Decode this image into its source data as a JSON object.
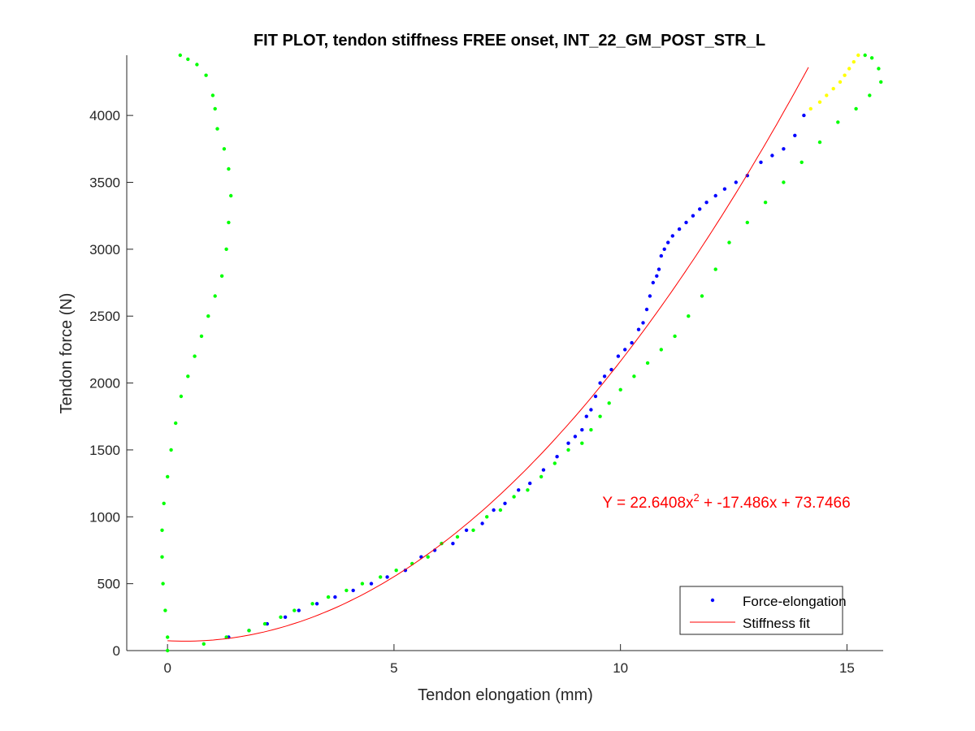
{
  "chart_data": {
    "type": "scatter",
    "title": "FIT PLOT, tendon stiffness FREE onset, INT_22_GM_POST_STR_L",
    "xlabel": "Tendon elongation (mm)",
    "ylabel": "Tendon force (N)",
    "xlim": [
      -0.9,
      15.8
    ],
    "ylim": [
      0,
      4450
    ],
    "xticks": [
      0,
      5,
      10,
      15
    ],
    "yticks": [
      0,
      500,
      1000,
      1500,
      2000,
      2500,
      3000,
      3500,
      4000
    ],
    "grid": false,
    "legend_position": "bottom-right",
    "legend": [
      {
        "label": "Force-elongation",
        "marker": "dot",
        "color": "#0000ff"
      },
      {
        "label": "Stiffness fit",
        "marker": "line",
        "color": "#ff0000"
      }
    ],
    "annotation": {
      "prefix": "Y = 22.6408x",
      "superscript": "2",
      "suffix": " + -17.486x + 73.7466",
      "color": "#ff0000",
      "x": 9.6,
      "y": 1070
    },
    "fit": {
      "name": "Stiffness fit",
      "color": "#ff0000",
      "coefficients": [
        22.6408,
        -17.486,
        73.7466
      ],
      "x_range": [
        0.0,
        14.15
      ]
    },
    "series": [
      {
        "name": "Force-elongation",
        "color": "#0000ff",
        "x": [
          1.35,
          1.8,
          2.2,
          2.6,
          2.9,
          3.3,
          3.7,
          4.1,
          4.5,
          4.85,
          5.25,
          5.6,
          5.9,
          6.3,
          6.6,
          6.95,
          7.2,
          7.45,
          7.75,
          8.0,
          8.3,
          8.6,
          8.85,
          9.0,
          9.15,
          9.25,
          9.35,
          9.45,
          9.55,
          9.65,
          9.8,
          9.95,
          10.1,
          10.25,
          10.4,
          10.5,
          10.58,
          10.65,
          10.72,
          10.8,
          10.85,
          10.9,
          10.97,
          11.05,
          11.15,
          11.3,
          11.45,
          11.6,
          11.75,
          11.9,
          12.1,
          12.3,
          12.55,
          12.8,
          13.1,
          13.35,
          13.6,
          13.85,
          14.05
        ],
        "y": [
          100,
          150,
          200,
          250,
          300,
          350,
          400,
          450,
          500,
          550,
          600,
          700,
          750,
          800,
          900,
          950,
          1050,
          1100,
          1200,
          1250,
          1350,
          1450,
          1550,
          1600,
          1650,
          1750,
          1800,
          1900,
          2000,
          2050,
          2100,
          2200,
          2250,
          2300,
          2400,
          2450,
          2550,
          2650,
          2750,
          2800,
          2850,
          2950,
          3000,
          3050,
          3100,
          3150,
          3200,
          3250,
          3300,
          3350,
          3400,
          3450,
          3500,
          3550,
          3650,
          3700,
          3750,
          3850,
          4000
        ]
      },
      {
        "name": "",
        "color": "#00ff00",
        "x": [
          1.3,
          1.8,
          2.15,
          2.5,
          2.8,
          3.2,
          3.55,
          3.95,
          4.3,
          4.7,
          5.05,
          5.4,
          5.75,
          6.05,
          6.4,
          6.75,
          7.05,
          7.35,
          7.65,
          7.95,
          8.25,
          8.55,
          8.85,
          9.15,
          9.35,
          9.55,
          9.75,
          10.0,
          10.3,
          10.6,
          10.9,
          11.2,
          11.5,
          11.8,
          12.1,
          12.4,
          12.8,
          13.2,
          13.6,
          14.0,
          14.4,
          14.8,
          15.2,
          15.5,
          15.75,
          15.7,
          15.55,
          15.4
        ],
        "y": [
          100,
          150,
          200,
          250,
          300,
          350,
          400,
          450,
          500,
          550,
          600,
          650,
          700,
          800,
          850,
          900,
          1000,
          1050,
          1150,
          1200,
          1300,
          1400,
          1500,
          1550,
          1650,
          1750,
          1850,
          1950,
          2050,
          2150,
          2250,
          2350,
          2500,
          2650,
          2850,
          3050,
          3200,
          3350,
          3500,
          3650,
          3800,
          3950,
          4050,
          4150,
          4250,
          4350,
          4430,
          4450
        ]
      },
      {
        "name": "",
        "color": "#00ff00",
        "x": [
          0.0,
          0.0,
          -0.05,
          -0.1,
          -0.12,
          -0.12,
          -0.08,
          0.0,
          0.08,
          0.18,
          0.3,
          0.45,
          0.6,
          0.75,
          0.9,
          1.05,
          1.2,
          1.3,
          1.35,
          1.4,
          1.35,
          1.25,
          1.1,
          1.05,
          1.0,
          0.85,
          0.65,
          0.45,
          0.28,
          0.8
        ],
        "y": [
          0,
          100,
          300,
          500,
          700,
          900,
          1100,
          1300,
          1500,
          1700,
          1900,
          2050,
          2200,
          2350,
          2500,
          2650,
          2800,
          3000,
          3200,
          3400,
          3600,
          3750,
          3900,
          4050,
          4150,
          4300,
          4380,
          4420,
          4450,
          50
        ]
      },
      {
        "name": "",
        "color": "#ffff00",
        "x": [
          14.2,
          14.4,
          14.55,
          14.7,
          14.85,
          14.95,
          15.05,
          15.15,
          15.25
        ],
        "y": [
          4050,
          4100,
          4150,
          4200,
          4250,
          4300,
          4350,
          4400,
          4450
        ]
      }
    ]
  }
}
